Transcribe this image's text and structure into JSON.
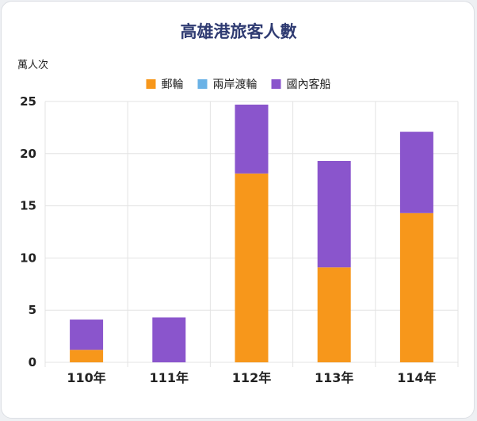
{
  "chart_data": {
    "type": "bar",
    "stacked": true,
    "title": "高雄港旅客人數",
    "ylabel": "萬人次",
    "xlabel": "",
    "categories": [
      "110年",
      "111年",
      "112年",
      "113年",
      "114年"
    ],
    "series": [
      {
        "name": "郵輪",
        "color": "#f7971b",
        "values": [
          1.2,
          0,
          18.1,
          9.1,
          14.3
        ]
      },
      {
        "name": "兩岸渡輪",
        "color": "#6ab2e6",
        "values": [
          0,
          0,
          0,
          0,
          0
        ]
      },
      {
        "name": "國內客船",
        "color": "#8a55cc",
        "values": [
          2.9,
          4.3,
          6.6,
          10.2,
          7.8
        ]
      }
    ],
    "ylim": [
      0,
      25
    ],
    "yticks": [
      0,
      5,
      10,
      15,
      20,
      25
    ],
    "grid": true,
    "legend": "top"
  },
  "colors": {
    "title": "#2f3b72",
    "text": "#222222",
    "grid": "#e3e3e3"
  }
}
